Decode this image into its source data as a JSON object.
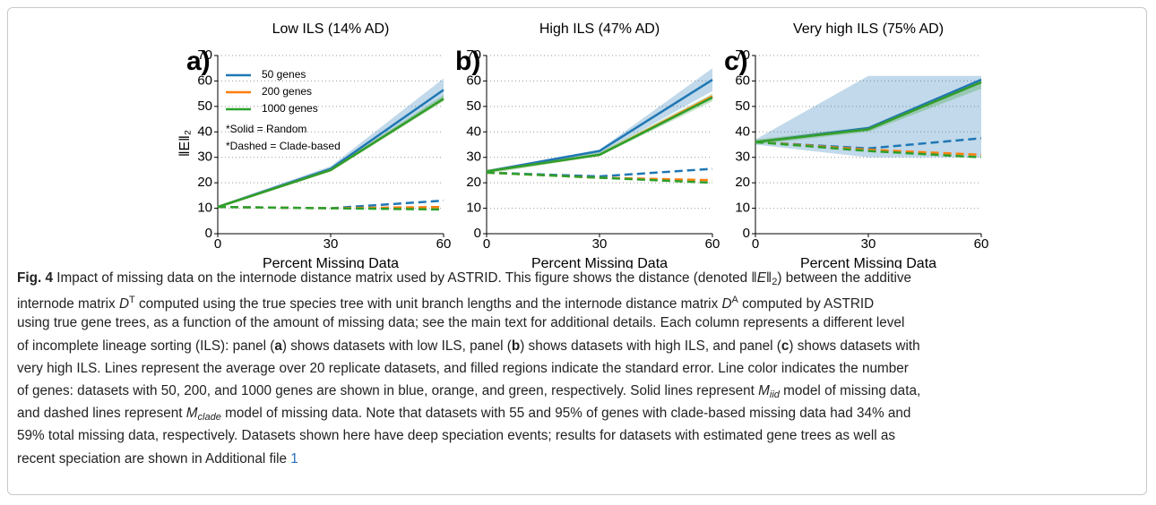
{
  "chart_data": [
    {
      "type": "line",
      "title": "Low ILS (14% AD)",
      "panel": "a)",
      "ylabel": "‖E‖₂",
      "xlabel": "Percent Missing Data",
      "x": [
        0,
        30,
        60
      ],
      "xlim": [
        0,
        60
      ],
      "xticks": [
        0,
        30,
        60
      ],
      "ylim": [
        0,
        70
      ],
      "yticks": [
        0,
        10,
        20,
        30,
        40,
        50,
        60,
        70
      ],
      "grid": true,
      "legend": "upper left",
      "notes": [
        "*Solid = Random",
        "*Dashed = Clade-based"
      ],
      "series": [
        {
          "name": "50 genes",
          "color": "#1f77b4",
          "lines": [
            {
              "style": "solid",
              "values": [
                10.5,
                25.5,
                56.5
              ],
              "lower": [
                10,
                25,
                53
              ],
              "upper": [
                11,
                26.5,
                61
              ]
            },
            {
              "style": "dashed",
              "values": [
                10.5,
                10,
                13
              ]
            }
          ]
        },
        {
          "name": "200 genes",
          "color": "#ff7f0e",
          "lines": [
            {
              "style": "solid",
              "values": [
                10.5,
                25,
                53
              ]
            },
            {
              "style": "dashed",
              "values": [
                10.5,
                10,
                10.5
              ]
            }
          ]
        },
        {
          "name": "1000 genes",
          "color": "#2ca02c",
          "lines": [
            {
              "style": "solid",
              "values": [
                10.5,
                25,
                53
              ],
              "lower": [
                10,
                24.5,
                52
              ],
              "upper": [
                11,
                25.5,
                54.5
              ]
            },
            {
              "style": "dashed",
              "values": [
                10.5,
                10,
                9.5
              ]
            }
          ]
        }
      ]
    },
    {
      "type": "line",
      "title": "High ILS (47% AD)",
      "panel": "b)",
      "xlabel": "Percent Missing Data",
      "x": [
        0,
        30,
        60
      ],
      "xlim": [
        0,
        60
      ],
      "xticks": [
        0,
        30,
        60
      ],
      "ylim": [
        0,
        70
      ],
      "yticks": [
        0,
        10,
        20,
        30,
        40,
        50,
        60,
        70
      ],
      "grid": true,
      "series": [
        {
          "color": "#1f77b4",
          "lines": [
            {
              "style": "solid",
              "values": [
                24.5,
                32.5,
                60.5
              ],
              "lower": [
                24,
                31.5,
                56
              ],
              "upper": [
                25,
                33,
                65
              ]
            },
            {
              "style": "dashed",
              "values": [
                24,
                22.5,
                25.5
              ]
            }
          ]
        },
        {
          "color": "#ff7f0e",
          "lines": [
            {
              "style": "solid",
              "values": [
                24.5,
                31,
                54
              ]
            },
            {
              "style": "dashed",
              "values": [
                24,
                22,
                21
              ]
            }
          ]
        },
        {
          "color": "#2ca02c",
          "lines": [
            {
              "style": "solid",
              "values": [
                24.5,
                31,
                53.5
              ],
              "lower": [
                23.5,
                30.5,
                52
              ],
              "upper": [
                25,
                32,
                55
              ]
            },
            {
              "style": "dashed",
              "values": [
                24,
                22,
                20
              ]
            }
          ]
        }
      ]
    },
    {
      "type": "line",
      "title": "Very high ILS (75% AD)",
      "panel": "c)",
      "xlabel": "Percent Missing Data",
      "x": [
        0,
        30,
        60
      ],
      "xlim": [
        0,
        60
      ],
      "xticks": [
        0,
        30,
        60
      ],
      "ylim": [
        0,
        70
      ],
      "yticks": [
        0,
        10,
        20,
        30,
        40,
        50,
        60,
        70
      ],
      "grid": true,
      "series": [
        {
          "color": "#1f77b4",
          "lines": [
            {
              "style": "solid",
              "values": [
                36,
                41.5,
                60.5
              ]
            },
            {
              "style": "dashed",
              "values": [
                36,
                33.5,
                37.5
              ],
              "lower": [
                35,
                30,
                30
              ],
              "upper": [
                37,
                62,
                62
              ]
            }
          ]
        },
        {
          "color": "#ff7f0e",
          "lines": [
            {
              "style": "solid",
              "values": [
                36,
                41,
                59.5
              ]
            },
            {
              "style": "dashed",
              "values": [
                36,
                33,
                31
              ]
            }
          ]
        },
        {
          "color": "#2ca02c",
          "lines": [
            {
              "style": "solid",
              "values": [
                36,
                41,
                59.5
              ],
              "lower": [
                35,
                40,
                57
              ],
              "upper": [
                37,
                42,
                61
              ]
            },
            {
              "style": "dashed",
              "values": [
                36,
                32.5,
                30
              ]
            }
          ]
        }
      ]
    }
  ],
  "caption": {
    "lines": [
      [
        {
          "t": "Fig. 4",
          "s": "b"
        },
        {
          "t": " Impact of missing data on the internode distance matrix used by ASTRID. This figure shows the distance (denoted ‖"
        },
        {
          "t": "E",
          "s": "i"
        },
        {
          "t": "‖"
        },
        {
          "t": "2",
          "s": "sub"
        },
        {
          "t": ") between the additive"
        }
      ],
      [
        {
          "t": "internode matrix "
        },
        {
          "t": "D",
          "s": "i"
        },
        {
          "t": "T",
          "s": "sup"
        },
        {
          "t": " computed using the true species tree with unit branch lengths and the internode distance matrix "
        },
        {
          "t": "D",
          "s": "i"
        },
        {
          "t": "A",
          "s": "sup"
        },
        {
          "t": " computed by ASTRID"
        }
      ],
      [
        {
          "t": "using true gene trees, as a function of the amount of missing data; see the main text for additional details. Each column represents a different level"
        }
      ],
      [
        {
          "t": "of incomplete lineage sorting (ILS): panel ("
        },
        {
          "t": "a",
          "s": "b"
        },
        {
          "t": ") shows datasets with low ILS, panel ("
        },
        {
          "t": "b",
          "s": "b"
        },
        {
          "t": ") shows datasets with high ILS, and panel ("
        },
        {
          "t": "c",
          "s": "b"
        },
        {
          "t": ") shows datasets with"
        }
      ],
      [
        {
          "t": "very high ILS. Lines represent the average over 20 replicate datasets, and filled regions indicate the standard error. Line color indicates the number"
        }
      ],
      [
        {
          "t": "of genes: datasets with 50, 200, and 1000 genes are shown in blue, orange, and green, respectively. Solid lines represent "
        },
        {
          "t": "M",
          "s": "i"
        },
        {
          "t": "iid",
          "s": "isub"
        },
        {
          "t": " model of missing data,"
        }
      ],
      [
        {
          "t": "and dashed lines represent "
        },
        {
          "t": "M",
          "s": "i"
        },
        {
          "t": "clade",
          "s": "isub"
        },
        {
          "t": " model of missing data. Note that datasets with 55 and 95% of genes with clade-based missing data had 34% and"
        }
      ],
      [
        {
          "t": "59% total missing data, respectively. Datasets shown here have deep speciation events; results for datasets with estimated gene trees as well as"
        }
      ],
      [
        {
          "t": "recent speciation are shown in Additional file "
        },
        {
          "t": "1",
          "s": "link"
        }
      ]
    ]
  }
}
